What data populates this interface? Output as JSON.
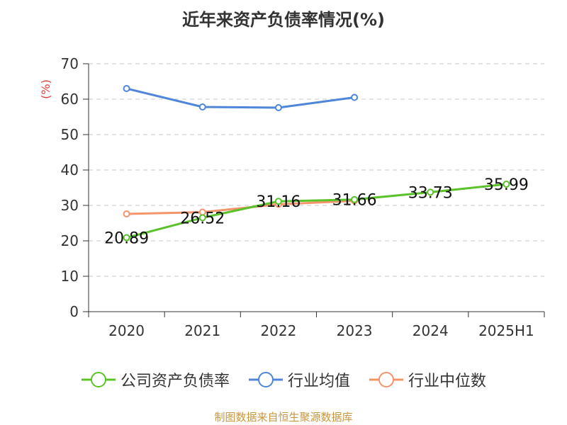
{
  "chart_data": {
    "type": "line",
    "title": "近年来资产负债率情况(%)",
    "ylabel": "(%)",
    "xlabel": "",
    "categories": [
      "2020",
      "2021",
      "2022",
      "2023",
      "2024",
      "2025H1"
    ],
    "ylim": [
      0,
      70
    ],
    "yticks": [
      0,
      10,
      20,
      30,
      40,
      50,
      60,
      70
    ],
    "grid": true,
    "legend_position": "bottom",
    "series": [
      {
        "name": "公司资产负债率",
        "color": "#5cc22b",
        "values": [
          20.89,
          26.52,
          31.16,
          31.66,
          33.73,
          35.99
        ],
        "labels": [
          "20.89",
          "26.52",
          "31.16",
          "31.66",
          "33.73",
          "35.99"
        ]
      },
      {
        "name": "行业均值",
        "color": "#4f86d9",
        "values": [
          63.0,
          57.8,
          57.6,
          60.5,
          null,
          null
        ]
      },
      {
        "name": "行业中位数",
        "color": "#f3956a",
        "values": [
          27.6,
          28.1,
          30.3,
          31.3,
          null,
          null
        ]
      }
    ]
  },
  "source": "制图数据来自恒生聚源数据库"
}
